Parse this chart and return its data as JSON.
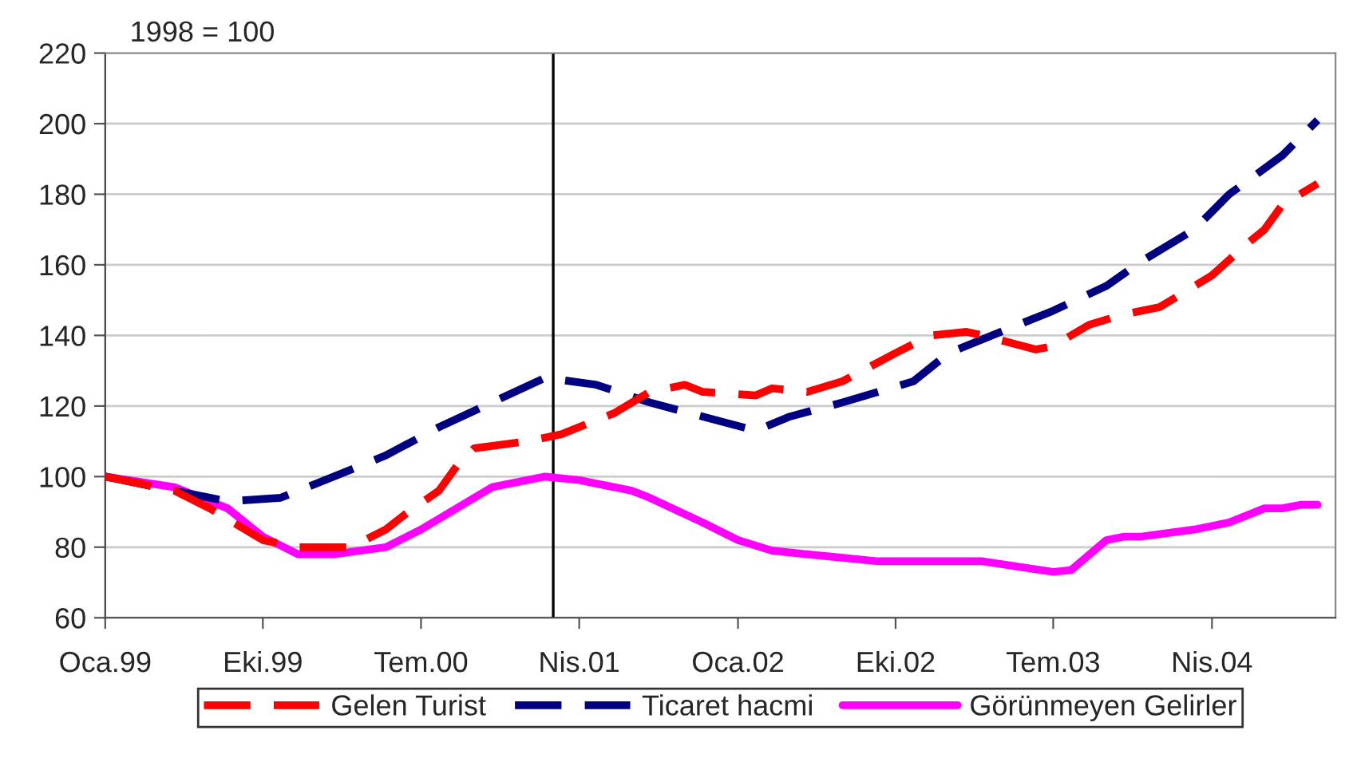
{
  "chart_data": {
    "type": "line",
    "annotations": [
      "1998 = 100"
    ],
    "series": [
      {
        "name": "Gelen Turist",
        "color": "#ff0000",
        "line_style": "dashed",
        "x": [
          "1999-01",
          "1999-05",
          "1999-07",
          "1999-10",
          "1999-12",
          "2000-03",
          "2000-05",
          "2000-06",
          "2000-08",
          "2000-09",
          "2000-10",
          "2001-01",
          "2001-03",
          "2001-06",
          "2001-08",
          "2001-10",
          "2001-11",
          "2002-02",
          "2002-03",
          "2002-05",
          "2002-07",
          "2002-10",
          "2002-12",
          "2003-02",
          "2003-03",
          "2003-06",
          "2003-07",
          "2003-09",
          "2003-11",
          "2004-01",
          "2004-02",
          "2004-04",
          "2004-06",
          "2004-07",
          "2004-08",
          "2004-10"
        ],
        "values": [
          100,
          96,
          91,
          82,
          80,
          80,
          85,
          89,
          96,
          103,
          108,
          110,
          112,
          118,
          124,
          126,
          124,
          123,
          125,
          124,
          127,
          135,
          140,
          141,
          140,
          136,
          137,
          143,
          146,
          148,
          151,
          157,
          166,
          170,
          177,
          183
        ]
      },
      {
        "name": "Ticaret hacmi",
        "color": "#000080",
        "line_style": "dashed",
        "x": [
          "1999-01",
          "1999-05",
          "1999-08",
          "1999-11",
          "2000-02",
          "2000-05",
          "2000-08",
          "2000-11",
          "2001-02",
          "2001-05",
          "2001-08",
          "2001-11",
          "2002-02",
          "2002-04",
          "2002-07",
          "2002-11",
          "2003-01",
          "2003-04",
          "2003-07",
          "2003-10",
          "2003-12",
          "2004-03",
          "2004-05",
          "2004-08",
          "2004-10"
        ],
        "values": [
          100,
          96,
          93,
          94,
          100,
          106,
          114,
          121,
          128,
          126,
          121,
          117,
          113,
          117,
          121,
          127,
          135,
          141,
          147,
          154,
          161,
          170,
          180,
          191,
          201
        ]
      },
      {
        "name": "Görünmeyen Gelirler",
        "color": "#ff00ff",
        "line_style": "solid",
        "x": [
          "1999-01",
          "1999-05",
          "1999-08",
          "1999-10",
          "1999-12",
          "2000-02",
          "2000-05",
          "2000-07",
          "2000-11",
          "2001-02",
          "2001-04",
          "2001-07",
          "2001-08",
          "2001-11",
          "2002-01",
          "2002-03",
          "2002-06",
          "2002-09",
          "2002-12",
          "2003-01",
          "2003-03",
          "2003-07",
          "2003-08",
          "2003-10",
          "2003-11",
          "2003-12",
          "2004-03",
          "2004-05",
          "2004-07",
          "2004-08",
          "2004-09",
          "2004-10"
        ],
        "values": [
          100,
          97,
          91,
          83,
          78,
          78,
          80,
          85,
          97,
          100,
          99,
          96,
          94,
          87,
          82,
          79,
          77.5,
          76,
          76,
          76,
          76,
          73,
          73.5,
          82,
          83,
          83,
          85,
          87,
          91,
          91,
          92,
          92
        ]
      }
    ],
    "ref_lines": [
      {
        "axis": "x",
        "value": "2001-02-15",
        "color": "#000000",
        "line_style": "solid"
      }
    ],
    "xlim": [
      "1999-01",
      "2004-11"
    ],
    "xticks": [
      {
        "value": "1999-01",
        "label": "Oca.99"
      },
      {
        "value": "1999-10",
        "label": "Eki.99"
      },
      {
        "value": "2000-07",
        "label": "Tem.00"
      },
      {
        "value": "2001-04",
        "label": "Nis.01"
      },
      {
        "value": "2002-01",
        "label": "Oca.02"
      },
      {
        "value": "2002-10",
        "label": "Eki.02"
      },
      {
        "value": "2003-07",
        "label": "Tem.03"
      },
      {
        "value": "2004-04",
        "label": "Nis.04"
      }
    ],
    "ylim": [
      60,
      220
    ],
    "yticks": [
      60,
      80,
      100,
      120,
      140,
      160,
      180,
      200,
      220
    ],
    "grid": "y",
    "legend": "bottom",
    "marker": "none"
  }
}
